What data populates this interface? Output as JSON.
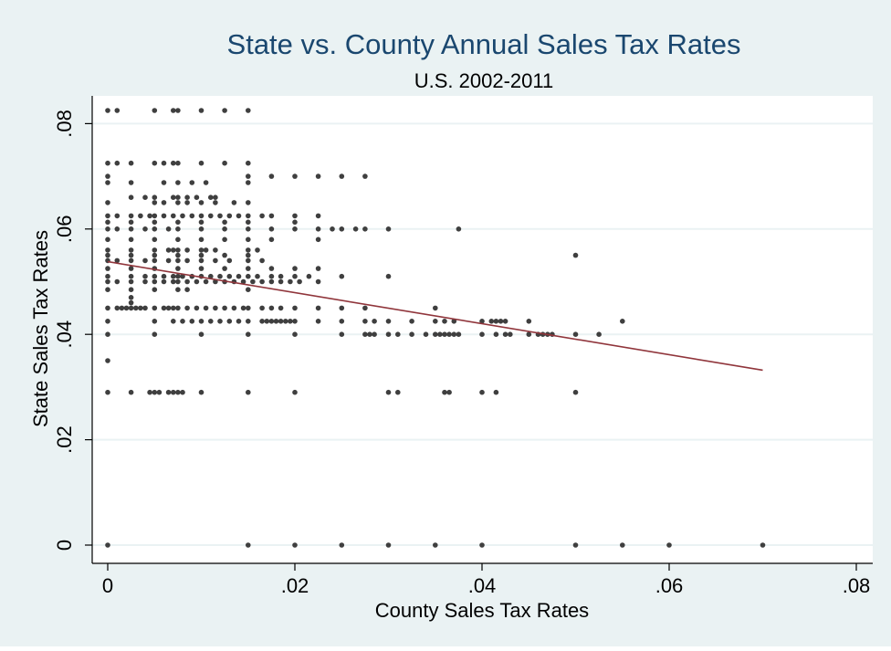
{
  "chart_data": {
    "type": "scatter",
    "title": "State vs. County Annual Sales Tax Rates",
    "subtitle": "U.S. 2002-2011",
    "xlabel": "County Sales Tax Rates",
    "ylabel": "State Sales Tax Rates",
    "xlim": [
      -0.002,
      0.082
    ],
    "ylim": [
      -0.002,
      0.085
    ],
    "xticks": [
      {
        "value": 0,
        "label": "0"
      },
      {
        "value": 0.02,
        "label": ".02"
      },
      {
        "value": 0.04,
        "label": ".04"
      },
      {
        "value": 0.06,
        "label": ".06"
      },
      {
        "value": 0.08,
        "label": ".08"
      }
    ],
    "yticks": [
      {
        "value": 0,
        "label": "0"
      },
      {
        "value": 0.02,
        "label": ".02"
      },
      {
        "value": 0.04,
        "label": ".04"
      },
      {
        "value": 0.06,
        "label": ".06"
      },
      {
        "value": 0.08,
        "label": ".08"
      }
    ],
    "grid": "horizontal",
    "colors": {
      "outer_background": "#eaf2f3",
      "plot_background": "#ffffff",
      "gridline": "#eaf2f3",
      "points": "#3f3f3f",
      "fit_line": "#90353b",
      "title": "#1a476f",
      "text": "#000000"
    },
    "fit_line": {
      "x": [
        0,
        0.07
      ],
      "y": [
        0.0538,
        0.0332
      ]
    },
    "points": [
      [
        0,
        0.0825
      ],
      [
        0.001,
        0.0825
      ],
      [
        0.005,
        0.0825
      ],
      [
        0.007,
        0.0825
      ],
      [
        0.0075,
        0.0825
      ],
      [
        0.01,
        0.0825
      ],
      [
        0.0125,
        0.0825
      ],
      [
        0.015,
        0.0825
      ],
      [
        0,
        0.0725
      ],
      [
        0.001,
        0.0725
      ],
      [
        0.0025,
        0.0725
      ],
      [
        0.005,
        0.0725
      ],
      [
        0.006,
        0.0725
      ],
      [
        0.007,
        0.0725
      ],
      [
        0.0075,
        0.0725
      ],
      [
        0.01,
        0.0725
      ],
      [
        0.0125,
        0.0725
      ],
      [
        0.015,
        0.0725
      ],
      [
        0,
        0.07
      ],
      [
        0.015,
        0.07
      ],
      [
        0.0175,
        0.07
      ],
      [
        0.02,
        0.07
      ],
      [
        0.0225,
        0.07
      ],
      [
        0.025,
        0.07
      ],
      [
        0.0275,
        0.07
      ],
      [
        0,
        0.0688
      ],
      [
        0.0025,
        0.0688
      ],
      [
        0.006,
        0.0688
      ],
      [
        0.0075,
        0.0688
      ],
      [
        0.009,
        0.0688
      ],
      [
        0.0105,
        0.0688
      ],
      [
        0.015,
        0.0688
      ],
      [
        0.0025,
        0.066
      ],
      [
        0.004,
        0.066
      ],
      [
        0.005,
        0.066
      ],
      [
        0.007,
        0.066
      ],
      [
        0.0075,
        0.066
      ],
      [
        0.0085,
        0.066
      ],
      [
        0.0095,
        0.066
      ],
      [
        0.011,
        0.066
      ],
      [
        0.0115,
        0.066
      ],
      [
        0,
        0.065
      ],
      [
        0.005,
        0.065
      ],
      [
        0.006,
        0.065
      ],
      [
        0.0075,
        0.065
      ],
      [
        0.0085,
        0.065
      ],
      [
        0.01,
        0.065
      ],
      [
        0.0115,
        0.065
      ],
      [
        0.0135,
        0.065
      ],
      [
        0.015,
        0.065
      ],
      [
        0,
        0.0625
      ],
      [
        0.001,
        0.0625
      ],
      [
        0.0025,
        0.0625
      ],
      [
        0.0035,
        0.0625
      ],
      [
        0.0045,
        0.0625
      ],
      [
        0.005,
        0.0625
      ],
      [
        0.006,
        0.0625
      ],
      [
        0.007,
        0.0625
      ],
      [
        0.008,
        0.0625
      ],
      [
        0.009,
        0.0625
      ],
      [
        0.01,
        0.0625
      ],
      [
        0.011,
        0.0625
      ],
      [
        0.012,
        0.0625
      ],
      [
        0.013,
        0.0625
      ],
      [
        0.014,
        0.0625
      ],
      [
        0.015,
        0.0625
      ],
      [
        0.0165,
        0.0625
      ],
      [
        0.0175,
        0.0625
      ],
      [
        0.02,
        0.0625
      ],
      [
        0.0225,
        0.0625
      ],
      [
        0,
        0.0613
      ],
      [
        0.0025,
        0.0613
      ],
      [
        0.005,
        0.0613
      ],
      [
        0.0075,
        0.0613
      ],
      [
        0.01,
        0.0613
      ],
      [
        0.0125,
        0.0613
      ],
      [
        0.015,
        0.0613
      ],
      [
        0.02,
        0.0613
      ],
      [
        0,
        0.06
      ],
      [
        0.001,
        0.06
      ],
      [
        0.0025,
        0.06
      ],
      [
        0.004,
        0.06
      ],
      [
        0.005,
        0.06
      ],
      [
        0.0065,
        0.06
      ],
      [
        0.0075,
        0.06
      ],
      [
        0.01,
        0.06
      ],
      [
        0.0125,
        0.06
      ],
      [
        0.015,
        0.06
      ],
      [
        0.0175,
        0.06
      ],
      [
        0.02,
        0.06
      ],
      [
        0.0225,
        0.06
      ],
      [
        0.024,
        0.06
      ],
      [
        0.025,
        0.06
      ],
      [
        0.0265,
        0.06
      ],
      [
        0.0275,
        0.06
      ],
      [
        0.03,
        0.06
      ],
      [
        0.0375,
        0.06
      ],
      [
        0,
        0.058
      ],
      [
        0.0025,
        0.058
      ],
      [
        0.005,
        0.058
      ],
      [
        0.0075,
        0.058
      ],
      [
        0.01,
        0.058
      ],
      [
        0.0125,
        0.058
      ],
      [
        0.015,
        0.058
      ],
      [
        0.0175,
        0.058
      ],
      [
        0.0225,
        0.058
      ],
      [
        0,
        0.056
      ],
      [
        0.0025,
        0.056
      ],
      [
        0.005,
        0.056
      ],
      [
        0.0065,
        0.056
      ],
      [
        0.007,
        0.056
      ],
      [
        0.0075,
        0.056
      ],
      [
        0.0085,
        0.056
      ],
      [
        0.01,
        0.056
      ],
      [
        0.0105,
        0.056
      ],
      [
        0.0115,
        0.056
      ],
      [
        0.015,
        0.056
      ],
      [
        0.016,
        0.056
      ],
      [
        0,
        0.055
      ],
      [
        0.0025,
        0.055
      ],
      [
        0.005,
        0.055
      ],
      [
        0.0075,
        0.055
      ],
      [
        0.01,
        0.055
      ],
      [
        0.0125,
        0.055
      ],
      [
        0.015,
        0.055
      ],
      [
        0.05,
        0.055
      ],
      [
        0,
        0.054
      ],
      [
        0.001,
        0.054
      ],
      [
        0.0025,
        0.054
      ],
      [
        0.004,
        0.054
      ],
      [
        0.005,
        0.054
      ],
      [
        0.0065,
        0.054
      ],
      [
        0.0075,
        0.054
      ],
      [
        0.0085,
        0.054
      ],
      [
        0.01,
        0.054
      ],
      [
        0.0115,
        0.054
      ],
      [
        0.013,
        0.054
      ],
      [
        0.015,
        0.054
      ],
      [
        0.0165,
        0.054
      ],
      [
        0,
        0.0525
      ],
      [
        0.0025,
        0.0525
      ],
      [
        0.005,
        0.0525
      ],
      [
        0.0075,
        0.0525
      ],
      [
        0.01,
        0.0525
      ],
      [
        0.0125,
        0.0525
      ],
      [
        0.015,
        0.0525
      ],
      [
        0.0175,
        0.0525
      ],
      [
        0.02,
        0.0525
      ],
      [
        0.0225,
        0.0525
      ],
      [
        0,
        0.051
      ],
      [
        0.0025,
        0.051
      ],
      [
        0.004,
        0.051
      ],
      [
        0.005,
        0.051
      ],
      [
        0.006,
        0.051
      ],
      [
        0.007,
        0.051
      ],
      [
        0.0075,
        0.051
      ],
      [
        0.008,
        0.051
      ],
      [
        0.009,
        0.051
      ],
      [
        0.01,
        0.051
      ],
      [
        0.011,
        0.051
      ],
      [
        0.012,
        0.051
      ],
      [
        0.013,
        0.051
      ],
      [
        0.014,
        0.051
      ],
      [
        0.015,
        0.051
      ],
      [
        0.016,
        0.051
      ],
      [
        0.0175,
        0.051
      ],
      [
        0.0185,
        0.051
      ],
      [
        0.02,
        0.051
      ],
      [
        0.0215,
        0.051
      ],
      [
        0.025,
        0.051
      ],
      [
        0.03,
        0.051
      ],
      [
        0,
        0.05
      ],
      [
        0.001,
        0.05
      ],
      [
        0.0025,
        0.05
      ],
      [
        0.004,
        0.05
      ],
      [
        0.005,
        0.05
      ],
      [
        0.006,
        0.05
      ],
      [
        0.007,
        0.05
      ],
      [
        0.0075,
        0.05
      ],
      [
        0.0085,
        0.05
      ],
      [
        0.0095,
        0.05
      ],
      [
        0.0105,
        0.05
      ],
      [
        0.0115,
        0.05
      ],
      [
        0.0125,
        0.05
      ],
      [
        0.0135,
        0.05
      ],
      [
        0.0145,
        0.05
      ],
      [
        0.0155,
        0.05
      ],
      [
        0.0165,
        0.05
      ],
      [
        0.0175,
        0.05
      ],
      [
        0.0185,
        0.05
      ],
      [
        0.0195,
        0.05
      ],
      [
        0.0205,
        0.05
      ],
      [
        0.0225,
        0.05
      ],
      [
        0,
        0.0485
      ],
      [
        0.0025,
        0.0485
      ],
      [
        0.005,
        0.0485
      ],
      [
        0.0075,
        0.0485
      ],
      [
        0.0085,
        0.0485
      ],
      [
        0.015,
        0.0485
      ],
      [
        0.0025,
        0.047
      ],
      [
        0.0025,
        0.046
      ],
      [
        0,
        0.045
      ],
      [
        0.001,
        0.045
      ],
      [
        0.0015,
        0.045
      ],
      [
        0.002,
        0.045
      ],
      [
        0.0025,
        0.045
      ],
      [
        0.003,
        0.045
      ],
      [
        0.0035,
        0.045
      ],
      [
        0.004,
        0.045
      ],
      [
        0.005,
        0.045
      ],
      [
        0.006,
        0.045
      ],
      [
        0.0065,
        0.045
      ],
      [
        0.007,
        0.045
      ],
      [
        0.0075,
        0.045
      ],
      [
        0.0085,
        0.045
      ],
      [
        0.0095,
        0.045
      ],
      [
        0.0105,
        0.045
      ],
      [
        0.0115,
        0.045
      ],
      [
        0.0125,
        0.045
      ],
      [
        0.0135,
        0.045
      ],
      [
        0.0145,
        0.045
      ],
      [
        0.015,
        0.045
      ],
      [
        0.0165,
        0.045
      ],
      [
        0.0175,
        0.045
      ],
      [
        0.0185,
        0.045
      ],
      [
        0.02,
        0.045
      ],
      [
        0.0225,
        0.045
      ],
      [
        0.025,
        0.045
      ],
      [
        0.0275,
        0.045
      ],
      [
        0.035,
        0.045
      ],
      [
        0,
        0.0425
      ],
      [
        0.005,
        0.0425
      ],
      [
        0.007,
        0.0425
      ],
      [
        0.008,
        0.0425
      ],
      [
        0.009,
        0.0425
      ],
      [
        0.01,
        0.0425
      ],
      [
        0.011,
        0.0425
      ],
      [
        0.012,
        0.0425
      ],
      [
        0.013,
        0.0425
      ],
      [
        0.014,
        0.0425
      ],
      [
        0.015,
        0.0425
      ],
      [
        0.0165,
        0.0425
      ],
      [
        0.017,
        0.0425
      ],
      [
        0.0175,
        0.0425
      ],
      [
        0.018,
        0.0425
      ],
      [
        0.0185,
        0.0425
      ],
      [
        0.019,
        0.0425
      ],
      [
        0.0195,
        0.0425
      ],
      [
        0.02,
        0.0425
      ],
      [
        0.0225,
        0.0425
      ],
      [
        0.025,
        0.0425
      ],
      [
        0.0275,
        0.0425
      ],
      [
        0.0285,
        0.0425
      ],
      [
        0.03,
        0.0425
      ],
      [
        0.0325,
        0.0425
      ],
      [
        0.035,
        0.0425
      ],
      [
        0.036,
        0.0425
      ],
      [
        0.037,
        0.0425
      ],
      [
        0.04,
        0.0425
      ],
      [
        0.041,
        0.0425
      ],
      [
        0.0415,
        0.0425
      ],
      [
        0.042,
        0.0425
      ],
      [
        0.0425,
        0.0425
      ],
      [
        0.045,
        0.0425
      ],
      [
        0.055,
        0.0425
      ],
      [
        0,
        0.04
      ],
      [
        0.005,
        0.04
      ],
      [
        0.01,
        0.04
      ],
      [
        0.015,
        0.04
      ],
      [
        0.02,
        0.04
      ],
      [
        0.025,
        0.04
      ],
      [
        0.0275,
        0.04
      ],
      [
        0.028,
        0.04
      ],
      [
        0.0285,
        0.04
      ],
      [
        0.03,
        0.04
      ],
      [
        0.031,
        0.04
      ],
      [
        0.0325,
        0.04
      ],
      [
        0.034,
        0.04
      ],
      [
        0.035,
        0.04
      ],
      [
        0.0355,
        0.04
      ],
      [
        0.036,
        0.04
      ],
      [
        0.0365,
        0.04
      ],
      [
        0.037,
        0.04
      ],
      [
        0.0375,
        0.04
      ],
      [
        0.04,
        0.04
      ],
      [
        0.0415,
        0.04
      ],
      [
        0.0425,
        0.04
      ],
      [
        0.043,
        0.04
      ],
      [
        0.045,
        0.04
      ],
      [
        0.046,
        0.04
      ],
      [
        0.0465,
        0.04
      ],
      [
        0.047,
        0.04
      ],
      [
        0.0475,
        0.04
      ],
      [
        0.05,
        0.04
      ],
      [
        0.0525,
        0.04
      ],
      [
        0,
        0.035
      ],
      [
        0,
        0.029
      ],
      [
        0.0025,
        0.029
      ],
      [
        0.0045,
        0.029
      ],
      [
        0.005,
        0.029
      ],
      [
        0.0055,
        0.029
      ],
      [
        0.0065,
        0.029
      ],
      [
        0.007,
        0.029
      ],
      [
        0.0075,
        0.029
      ],
      [
        0.008,
        0.029
      ],
      [
        0.01,
        0.029
      ],
      [
        0.015,
        0.029
      ],
      [
        0.02,
        0.029
      ],
      [
        0.03,
        0.029
      ],
      [
        0.031,
        0.029
      ],
      [
        0.036,
        0.029
      ],
      [
        0.0365,
        0.029
      ],
      [
        0.04,
        0.029
      ],
      [
        0.0415,
        0.029
      ],
      [
        0.05,
        0.029
      ],
      [
        0,
        0
      ],
      [
        0.015,
        0
      ],
      [
        0.02,
        0
      ],
      [
        0.025,
        0
      ],
      [
        0.03,
        0
      ],
      [
        0.035,
        0
      ],
      [
        0.04,
        0
      ],
      [
        0.05,
        0
      ],
      [
        0.055,
        0
      ],
      [
        0.06,
        0
      ],
      [
        0.07,
        0
      ]
    ]
  }
}
